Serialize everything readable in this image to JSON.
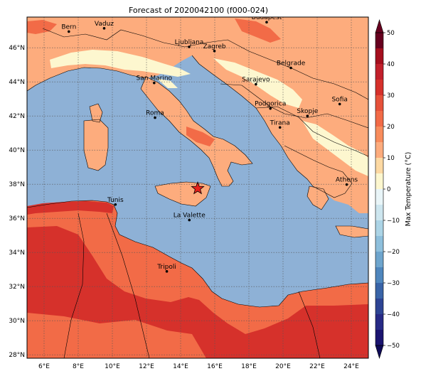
{
  "title": "Forecast of 2020042100 (f000-024)",
  "colors": {
    "sea": "#8eb1d6",
    "band_0_10": "#fdf7cf",
    "band_10_20": "#fdac7d",
    "band_20_30": "#f26b47",
    "band_30_40": "#d6312b",
    "grid": "#555555",
    "border": "#000000"
  },
  "map": {
    "lon_range": [
      5,
      25
    ],
    "lat_range": [
      27.8,
      47.8
    ],
    "lon_ticks": [
      "6°E",
      "8°E",
      "10°E",
      "12°E",
      "14°E",
      "16°E",
      "18°E",
      "20°E",
      "22°E",
      "24°E"
    ],
    "lon_tick_values": [
      6,
      8,
      10,
      12,
      14,
      16,
      18,
      20,
      22,
      24
    ],
    "lat_ticks": [
      "28°N",
      "30°N",
      "32°N",
      "34°N",
      "36°N",
      "38°N",
      "40°N",
      "42°N",
      "44°N",
      "46°N"
    ],
    "lat_tick_values": [
      28,
      30,
      32,
      34,
      36,
      38,
      40,
      42,
      44,
      46
    ],
    "grid": true
  },
  "cities": [
    {
      "name": "Bern",
      "lon": 7.45,
      "lat": 46.95
    },
    {
      "name": "Vaduz",
      "lon": 9.52,
      "lat": 47.14
    },
    {
      "name": "Budapest",
      "lon": 19.04,
      "lat": 47.5
    },
    {
      "name": "Ljubljana",
      "lon": 14.5,
      "lat": 46.05
    },
    {
      "name": "Zagreb",
      "lon": 15.98,
      "lat": 45.81
    },
    {
      "name": "Belgrade",
      "lon": 20.46,
      "lat": 44.82
    },
    {
      "name": "San Marino",
      "lon": 12.45,
      "lat": 43.94
    },
    {
      "name": "Sarajevo",
      "lon": 18.41,
      "lat": 43.86
    },
    {
      "name": "Sofia",
      "lon": 23.32,
      "lat": 42.7
    },
    {
      "name": "Podgorica",
      "lon": 19.26,
      "lat": 42.44
    },
    {
      "name": "Skopje",
      "lon": 21.43,
      "lat": 42.0
    },
    {
      "name": "Roma",
      "lon": 12.5,
      "lat": 41.9
    },
    {
      "name": "Tirana",
      "lon": 19.82,
      "lat": 41.33
    },
    {
      "name": "Athens",
      "lon": 23.73,
      "lat": 37.98
    },
    {
      "name": "Tunis",
      "lon": 10.18,
      "lat": 36.81
    },
    {
      "name": "La Valette",
      "lon": 14.51,
      "lat": 35.9
    },
    {
      "name": "Tripoli",
      "lon": 13.19,
      "lat": 32.89
    }
  ],
  "marker": {
    "lon": 15.0,
    "lat": 37.75
  },
  "colorbar": {
    "label": "Max Temperature (°C)",
    "ticks": [
      "50",
      "40",
      "30",
      "20",
      "10",
      "0",
      "−10",
      "−20",
      "−30",
      "−40",
      "−50"
    ],
    "tick_values": [
      50,
      40,
      30,
      20,
      10,
      0,
      -10,
      -20,
      -30,
      -40,
      -50
    ],
    "bands": [
      {
        "from": 45,
        "to": 50,
        "color": "#67001f"
      },
      {
        "from": 40,
        "to": 45,
        "color": "#a50f1e"
      },
      {
        "from": 35,
        "to": 40,
        "color": "#c2202b"
      },
      {
        "from": 30,
        "to": 35,
        "color": "#d6312b"
      },
      {
        "from": 25,
        "to": 30,
        "color": "#e6513a"
      },
      {
        "from": 20,
        "to": 25,
        "color": "#f26b47"
      },
      {
        "from": 15,
        "to": 20,
        "color": "#f88c5c"
      },
      {
        "from": 10,
        "to": 15,
        "color": "#fdac7d"
      },
      {
        "from": 5,
        "to": 10,
        "color": "#fdd9a3"
      },
      {
        "from": 0,
        "to": 5,
        "color": "#fdf7cf"
      },
      {
        "from": -5,
        "to": 0,
        "color": "#e9f5f8"
      },
      {
        "from": -10,
        "to": -5,
        "color": "#cde6ef"
      },
      {
        "from": -15,
        "to": -10,
        "color": "#acd4e6"
      },
      {
        "from": -20,
        "to": -15,
        "color": "#8ebfdc"
      },
      {
        "from": -25,
        "to": -20,
        "color": "#6ea5cd"
      },
      {
        "from": -30,
        "to": -25,
        "color": "#4f86bd"
      },
      {
        "from": -35,
        "to": -30,
        "color": "#3964a8"
      },
      {
        "from": -40,
        "to": -35,
        "color": "#2d4494"
      },
      {
        "from": -45,
        "to": -40,
        "color": "#272a86"
      },
      {
        "from": -50,
        "to": -45,
        "color": "#1b1470"
      }
    ],
    "extend_top": "#67001f",
    "extend_bottom": "#0f0a57"
  }
}
